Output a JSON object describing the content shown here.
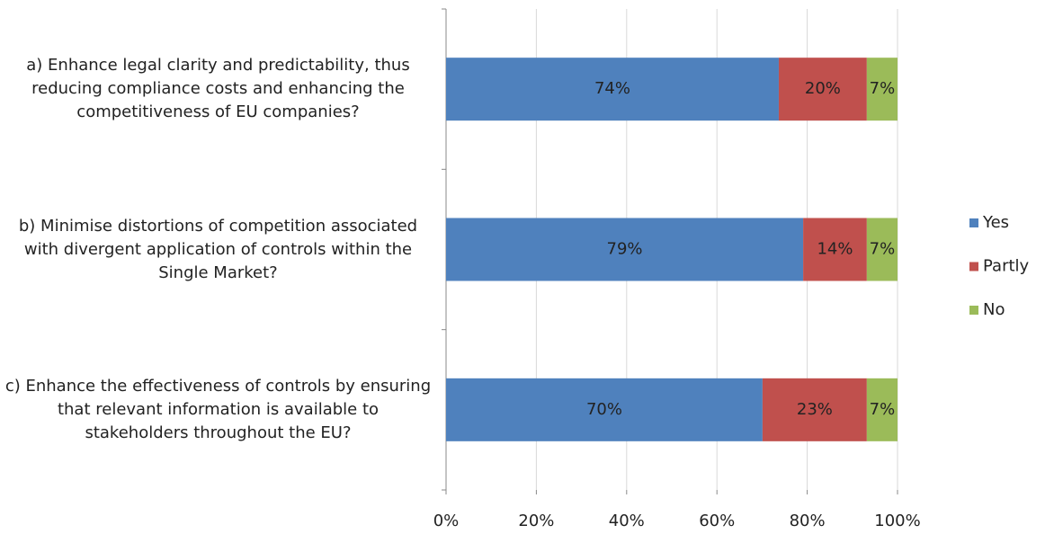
{
  "chart_data": {
    "type": "stacked-bar-horizontal",
    "categories": [
      "a) Enhance legal clarity and predictability, thus reducing compliance costs and enhancing the competitiveness of EU companies?",
      "b) Minimise distortions of competition associated with divergent application of controls within the Single Market?",
      "c) Enhance the effectiveness of controls by ensuring that relevant information is available to stakeholders throughout the EU?"
    ],
    "series": [
      {
        "name": "Yes",
        "color": "#4f81bd",
        "values": [
          73.7,
          79.1,
          70.1
        ],
        "value_labels": [
          "74%",
          "79%",
          "70%"
        ]
      },
      {
        "name": "Partly",
        "color": "#c0504d",
        "values": [
          19.5,
          14.1,
          23.1
        ],
        "value_labels": [
          "20%",
          "14%",
          "23%"
        ]
      },
      {
        "name": "No",
        "color": "#9bbb59",
        "values": [
          6.8,
          6.8,
          6.8
        ],
        "value_labels": [
          "7%",
          "7%",
          "7%"
        ]
      }
    ],
    "xlim": [
      0,
      100
    ],
    "xticks": [
      {
        "value": 0,
        "label": "0%"
      },
      {
        "value": 20,
        "label": "20%"
      },
      {
        "value": 40,
        "label": "40%"
      },
      {
        "value": 60,
        "label": "60%"
      },
      {
        "value": 80,
        "label": "80%"
      },
      {
        "value": 100,
        "label": "100%"
      }
    ],
    "grid": true,
    "legend": "right"
  }
}
